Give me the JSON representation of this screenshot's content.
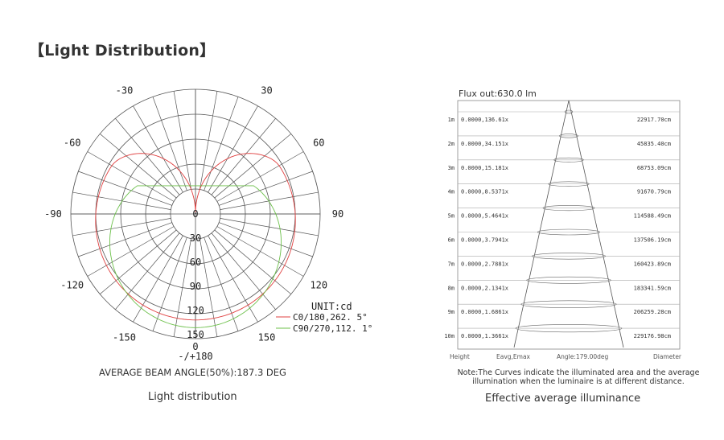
{
  "heading": "【Light Distribution】",
  "polar": {
    "angle_labels": [
      {
        "text": "-/+180",
        "deg": 180
      },
      {
        "text": "150",
        "deg": 150
      },
      {
        "text": "-150",
        "deg": -150
      },
      {
        "text": "120",
        "deg": 120
      },
      {
        "text": "-120",
        "deg": -120
      },
      {
        "text": "90",
        "deg": 90
      },
      {
        "text": "-90",
        "deg": -90
      },
      {
        "text": "60",
        "deg": 60
      },
      {
        "text": "-60",
        "deg": -60
      },
      {
        "text": "30",
        "deg": 30
      },
      {
        "text": "-30",
        "deg": -30
      }
    ],
    "radial_labels": [
      "0",
      "30",
      "60",
      "90",
      "120",
      "150",
      "0"
    ],
    "unit": "UNIT:cd",
    "legend": [
      {
        "text": "C0/180,262. 5°",
        "color": "#e04040"
      },
      {
        "text": "C90/270,112. 1°",
        "color": "#6cc04a"
      }
    ],
    "beam_angle": "AVERAGE BEAM ANGLE(50%):187.3 DEG",
    "caption": "Light distribution"
  },
  "illuminance": {
    "flux": "Flux out:630.0 lm",
    "rows": [
      {
        "height": "1m",
        "value": "0.0000,136.61x",
        "diameter": "22917.70cm"
      },
      {
        "height": "2m",
        "value": "0.0000,34.151x",
        "diameter": "45835.40cm"
      },
      {
        "height": "3m",
        "value": "0.0000,15.181x",
        "diameter": "68753.09cm"
      },
      {
        "height": "4m",
        "value": "0.0000,8.5371x",
        "diameter": "91670.79cm"
      },
      {
        "height": "5m",
        "value": "0.0000,5.4641x",
        "diameter": "114588.49cm"
      },
      {
        "height": "6m",
        "value": "0.0000,3.7941x",
        "diameter": "137506.19cm"
      },
      {
        "height": "7m",
        "value": "0.0000,2.7881x",
        "diameter": "160423.89cm"
      },
      {
        "height": "8m",
        "value": "0.0000,2.1341x",
        "diameter": "183341.59cm"
      },
      {
        "height": "9m",
        "value": "0.0000,1.6861x",
        "diameter": "206259.28cm"
      },
      {
        "height": "10m",
        "value": "0.0000,1.3661x",
        "diameter": "229176.98cm"
      }
    ],
    "footer": {
      "height": "Height",
      "eavg": "Eavg,Emax",
      "angle": "Angle:179.00deg",
      "diameter": "Diameter"
    },
    "note_line1": "Note:The Curves indicate the illuminated area and the average",
    "note_line2": "illumination when the luminaire is at different distance.",
    "caption": "Effective average illuminance"
  }
}
